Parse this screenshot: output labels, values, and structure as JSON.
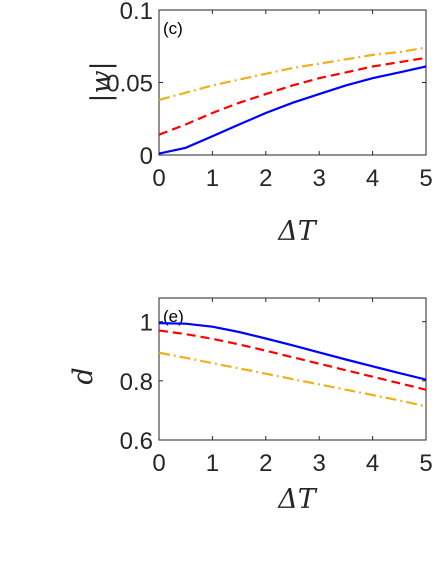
{
  "chart_data": [
    {
      "type": "line",
      "panel_label": "(c)",
      "xlabel": "ΔT",
      "ylabel": "|w|",
      "xlim": [
        0,
        5
      ],
      "ylim": [
        0,
        0.1
      ],
      "xticks": [
        "0",
        "1",
        "2",
        "3",
        "4",
        "5"
      ],
      "yticks": [
        "0",
        "0.05",
        "0.1"
      ],
      "grid": false,
      "series": [
        {
          "style": "solid",
          "color": "#0000ff",
          "x": [
            0,
            0.5,
            1,
            1.5,
            2,
            2.5,
            3,
            3.5,
            4,
            4.5,
            5
          ],
          "y": [
            0.001,
            0.005,
            0.013,
            0.021,
            0.029,
            0.036,
            0.042,
            0.048,
            0.053,
            0.057,
            0.061
          ]
        },
        {
          "style": "dashed",
          "color": "#ff0000",
          "x": [
            0,
            0.5,
            1,
            1.5,
            2,
            2.5,
            3,
            3.5,
            4,
            4.5,
            5
          ],
          "y": [
            0.014,
            0.021,
            0.029,
            0.036,
            0.042,
            0.048,
            0.053,
            0.057,
            0.061,
            0.064,
            0.067
          ]
        },
        {
          "style": "dashdot",
          "color": "#edb120",
          "x": [
            0,
            0.5,
            1,
            1.5,
            2,
            2.5,
            3,
            3.5,
            4,
            4.5,
            5
          ],
          "y": [
            0.038,
            0.043,
            0.048,
            0.052,
            0.056,
            0.06,
            0.063,
            0.066,
            0.069,
            0.071,
            0.074
          ]
        }
      ]
    },
    {
      "type": "line",
      "panel_label": "(e)",
      "xlabel": "ΔT",
      "ylabel": "d",
      "xlim": [
        0,
        5
      ],
      "ylim": [
        0.6,
        1.08
      ],
      "xticks": [
        "0",
        "1",
        "2",
        "3",
        "4",
        "5"
      ],
      "yticks": [
        "0.6",
        "0.8",
        "1"
      ],
      "grid": false,
      "series": [
        {
          "style": "solid",
          "color": "#0000ff",
          "x": [
            0,
            0.5,
            1,
            1.5,
            2,
            2.5,
            3,
            3.5,
            4,
            4.5,
            5
          ],
          "y": [
            0.995,
            0.993,
            0.983,
            0.965,
            0.943,
            0.92,
            0.896,
            0.872,
            0.849,
            0.826,
            0.804
          ]
        },
        {
          "style": "dashed",
          "color": "#ff0000",
          "x": [
            0,
            0.5,
            1,
            1.5,
            2,
            2.5,
            3,
            3.5,
            4,
            4.5,
            5
          ],
          "y": [
            0.97,
            0.958,
            0.942,
            0.923,
            0.902,
            0.88,
            0.858,
            0.836,
            0.814,
            0.792,
            0.77
          ]
        },
        {
          "style": "dashdot",
          "color": "#edb120",
          "x": [
            0,
            0.5,
            1,
            1.5,
            2,
            2.5,
            3,
            3.5,
            4,
            4.5,
            5
          ],
          "y": [
            0.895,
            0.878,
            0.86,
            0.842,
            0.824,
            0.806,
            0.788,
            0.77,
            0.752,
            0.734,
            0.714
          ]
        }
      ]
    }
  ]
}
